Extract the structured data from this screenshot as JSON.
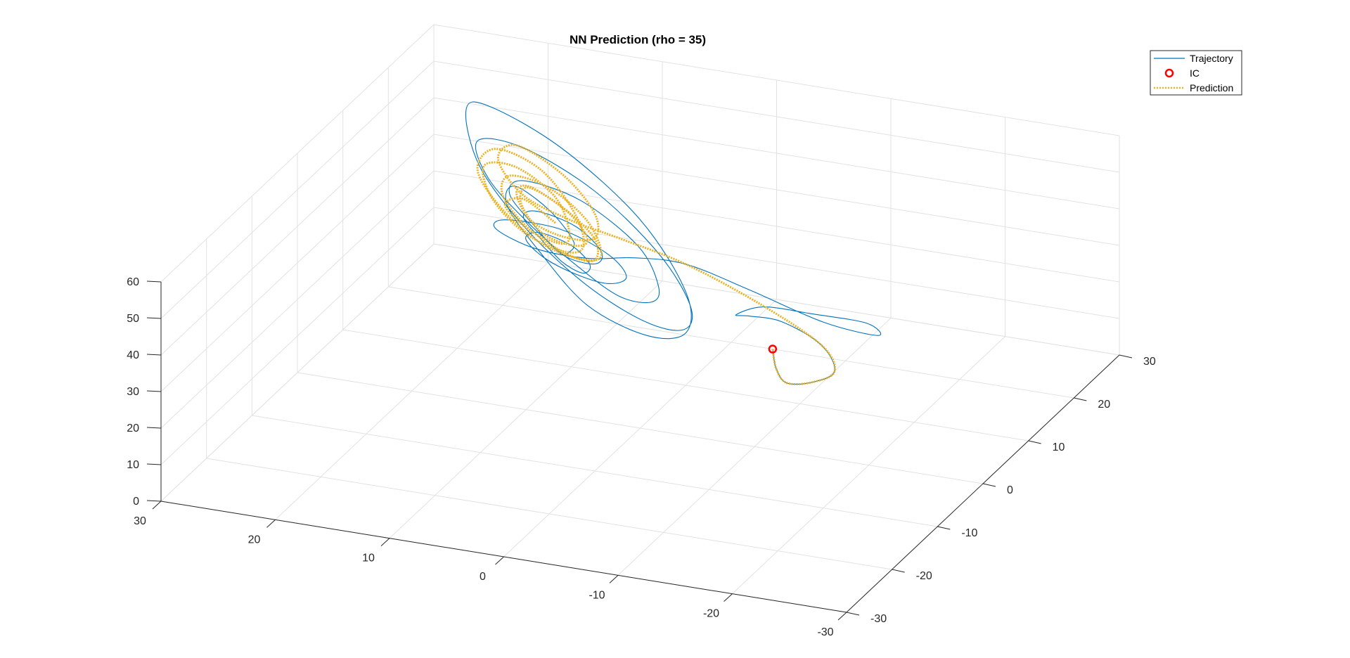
{
  "chart_data": {
    "type": "line",
    "title": "NN Prediction (rho = 35)",
    "xlabel": "",
    "ylabel": "",
    "zlabel": "",
    "view": "3d",
    "grid": true,
    "xlim": [
      -30,
      30
    ],
    "ylim": [
      -30,
      30
    ],
    "zlim": [
      0,
      60
    ],
    "x_ticks": [
      30,
      20,
      10,
      0,
      -10,
      -20,
      -30
    ],
    "y_ticks": [
      -30,
      -20,
      -10,
      0,
      10,
      20,
      30
    ],
    "z_ticks": [
      0,
      10,
      20,
      30,
      40,
      50,
      60
    ],
    "legend_position": "top-right",
    "legend": [
      {
        "label": "Trajectory",
        "style": "solid-line",
        "color": "#0072BD"
      },
      {
        "label": "IC",
        "style": "circle-marker",
        "color": "#FF0000"
      },
      {
        "label": "Prediction",
        "style": "dotted-line",
        "color": "#EDB120"
      }
    ],
    "initial_condition": {
      "x": -10,
      "y": 4,
      "z": 22
    },
    "series": [
      {
        "name": "Trajectory",
        "color": "#0072BD",
        "points": [
          [
            -10,
            4,
            22
          ],
          [
            -11.5,
            1,
            21
          ],
          [
            -14,
            -3,
            23
          ],
          [
            -17,
            -5,
            27
          ],
          [
            -19,
            -5,
            31
          ],
          [
            -17,
            -3,
            35
          ],
          [
            -12,
            1,
            34
          ],
          [
            -8,
            4,
            30
          ],
          [
            -6,
            6,
            27
          ],
          [
            -8,
            7,
            29
          ],
          [
            -13,
            5,
            32
          ],
          [
            -19,
            2,
            36
          ],
          [
            -22,
            -3,
            40
          ],
          [
            -18,
            -5,
            44
          ],
          [
            -10,
            -1,
            44
          ],
          [
            -2,
            5,
            40
          ],
          [
            4,
            9,
            34
          ],
          [
            9,
            11,
            29
          ],
          [
            14,
            12,
            28
          ],
          [
            17,
            11,
            33
          ],
          [
            15,
            8,
            40
          ],
          [
            9,
            5,
            44
          ],
          [
            4,
            3,
            42
          ],
          [
            2,
            2,
            38
          ],
          [
            4,
            3,
            34
          ],
          [
            8,
            6,
            31
          ],
          [
            12,
            9,
            30
          ],
          [
            14,
            10,
            33
          ],
          [
            12,
            8,
            38
          ],
          [
            8,
            5,
            40
          ],
          [
            6,
            4,
            37
          ],
          [
            7,
            5,
            33
          ],
          [
            10,
            8,
            31
          ],
          [
            13,
            11,
            32
          ],
          [
            15,
            12,
            36
          ],
          [
            13,
            10,
            41
          ],
          [
            8,
            6,
            44
          ],
          [
            5,
            4,
            41
          ],
          [
            6,
            5,
            36
          ],
          [
            10,
            8,
            33
          ],
          [
            14,
            12,
            34
          ],
          [
            17,
            14,
            39
          ],
          [
            15,
            12,
            46
          ],
          [
            8,
            7,
            50
          ],
          [
            1,
            2,
            47
          ],
          [
            -2,
            -1,
            41
          ],
          [
            -1,
            0,
            35
          ],
          [
            3,
            3,
            31
          ],
          [
            9,
            9,
            29
          ],
          [
            15,
            14,
            31
          ],
          [
            20,
            17,
            38
          ],
          [
            21,
            17,
            48
          ],
          [
            15,
            12,
            55
          ],
          [
            6,
            5,
            56
          ],
          [
            -2,
            -1,
            50
          ],
          [
            -6,
            -4,
            41
          ],
          [
            -5,
            -3,
            33
          ],
          [
            0,
            1,
            28
          ],
          [
            8,
            8,
            26
          ],
          [
            16,
            15,
            29
          ],
          [
            22,
            20,
            37
          ],
          [
            24,
            22,
            49
          ],
          [
            20,
            17,
            58
          ],
          [
            10,
            8,
            62
          ],
          [
            0,
            0,
            57
          ],
          [
            -6,
            -5,
            46
          ],
          [
            -6,
            -5,
            35
          ],
          [
            -1,
            -1,
            27
          ],
          [
            7,
            6,
            23
          ],
          [
            14,
            13,
            26
          ],
          [
            18,
            16,
            33
          ],
          [
            17,
            15,
            40
          ],
          [
            12,
            10,
            42
          ],
          [
            9,
            8,
            37
          ],
          [
            10,
            9,
            32
          ]
        ]
      },
      {
        "name": "Prediction",
        "color": "#EDB120",
        "points": [
          [
            -10,
            4,
            22
          ],
          [
            -11.5,
            1,
            21
          ],
          [
            -14,
            -3,
            23
          ],
          [
            -17,
            -5,
            27
          ],
          [
            -19,
            -5,
            31
          ],
          [
            -17,
            -3,
            35
          ],
          [
            -10,
            1,
            38
          ],
          [
            -2,
            5,
            40
          ],
          [
            5,
            8,
            40
          ],
          [
            10,
            10,
            40
          ],
          [
            15,
            12,
            42
          ],
          [
            18,
            14,
            48
          ],
          [
            16,
            13,
            54
          ],
          [
            10,
            8,
            55
          ],
          [
            6,
            5,
            50
          ],
          [
            6,
            5,
            43
          ],
          [
            10,
            8,
            38
          ],
          [
            14,
            11,
            37
          ],
          [
            16,
            13,
            41
          ],
          [
            14,
            11,
            46
          ],
          [
            9,
            7,
            46
          ],
          [
            7,
            6,
            41
          ],
          [
            9,
            8,
            36
          ],
          [
            13,
            11,
            34
          ],
          [
            16,
            14,
            37
          ],
          [
            15,
            13,
            43
          ],
          [
            10,
            8,
            46
          ],
          [
            6,
            5,
            43
          ],
          [
            6,
            5,
            37
          ],
          [
            10,
            9,
            32
          ],
          [
            15,
            13,
            32
          ],
          [
            18,
            15,
            37
          ],
          [
            17,
            14,
            44
          ],
          [
            12,
            10,
            48
          ],
          [
            7,
            6,
            46
          ],
          [
            5,
            4,
            40
          ],
          [
            8,
            7,
            34
          ],
          [
            13,
            11,
            31
          ],
          [
            18,
            15,
            33
          ],
          [
            21,
            17,
            40
          ],
          [
            19,
            16,
            48
          ],
          [
            13,
            11,
            51
          ],
          [
            8,
            6,
            47
          ],
          [
            7,
            5,
            40
          ],
          [
            10,
            8,
            34
          ],
          [
            15,
            12,
            32
          ],
          [
            19,
            15,
            36
          ],
          [
            20,
            16,
            43
          ],
          [
            16,
            13,
            48
          ],
          [
            11,
            9,
            47
          ],
          [
            9,
            7,
            41
          ],
          [
            10,
            8,
            36
          ],
          [
            14,
            11,
            34
          ],
          [
            17,
            13,
            37
          ],
          [
            15,
            12,
            41
          ],
          [
            11,
            9,
            40
          ]
        ]
      }
    ]
  }
}
